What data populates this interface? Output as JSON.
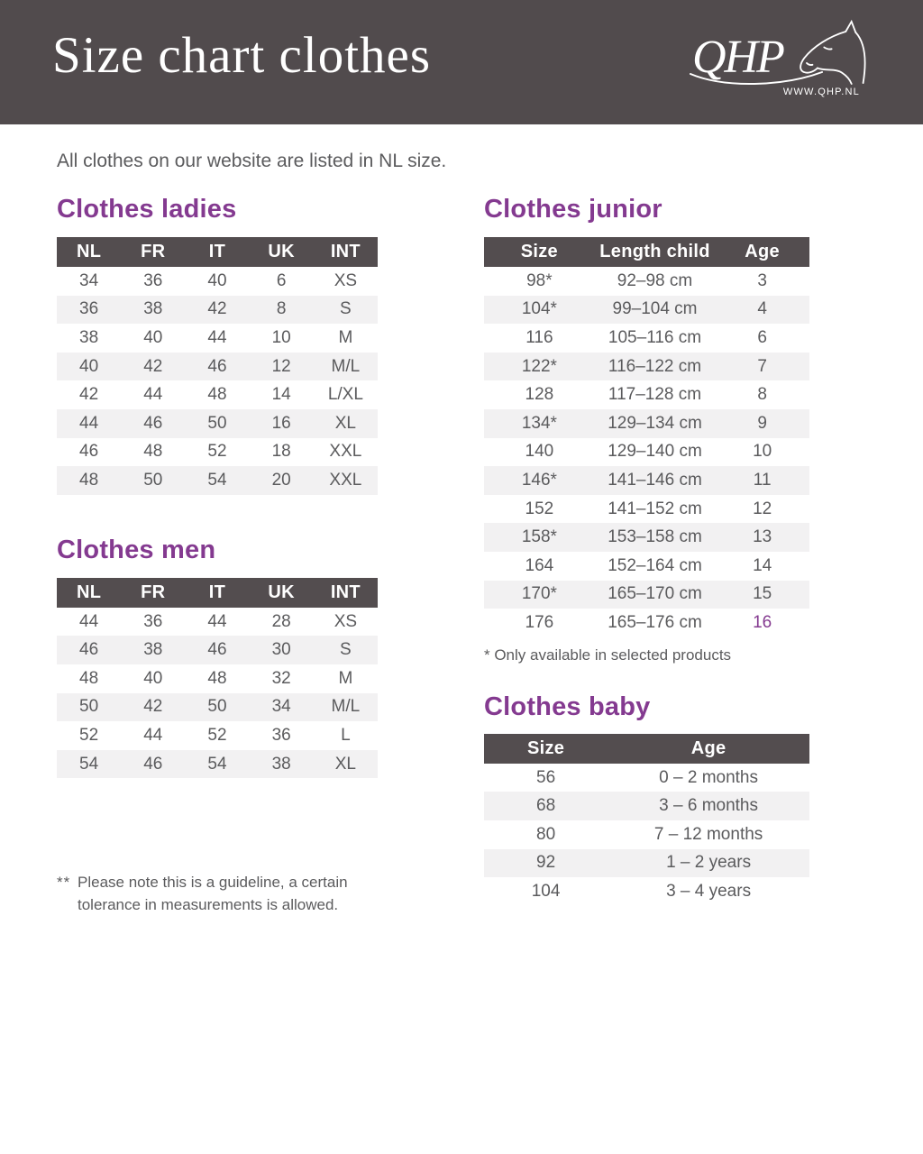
{
  "header": {
    "title": "Size chart clothes",
    "logo_text": "QHP",
    "logo_url": "WWW.QHP.NL"
  },
  "intro": "All clothes on our website are listed in NL size.",
  "colors": {
    "header_bg": "#514b4d",
    "table_header_bg": "#534d4f",
    "accent_purple": "#843a90",
    "body_text": "#5b5b5d",
    "row_stripe": "#f2f1f2"
  },
  "tables": {
    "ladies": {
      "title": "Clothes ladies",
      "columns": [
        "NL",
        "FR",
        "IT",
        "UK",
        "INT"
      ],
      "rows": [
        [
          "34",
          "36",
          "40",
          "6",
          "XS"
        ],
        [
          "36",
          "38",
          "42",
          "8",
          "S"
        ],
        [
          "38",
          "40",
          "44",
          "10",
          "M"
        ],
        [
          "40",
          "42",
          "46",
          "12",
          "M/L"
        ],
        [
          "42",
          "44",
          "48",
          "14",
          "L/XL"
        ],
        [
          "44",
          "46",
          "50",
          "16",
          "XL"
        ],
        [
          "46",
          "48",
          "52",
          "18",
          "XXL"
        ],
        [
          "48",
          "50",
          "54",
          "20",
          "XXL"
        ]
      ]
    },
    "men": {
      "title": "Clothes men",
      "columns": [
        "NL",
        "FR",
        "IT",
        "UK",
        "INT"
      ],
      "rows": [
        [
          "44",
          "36",
          "44",
          "28",
          "XS"
        ],
        [
          "46",
          "38",
          "46",
          "30",
          "S"
        ],
        [
          "48",
          "40",
          "48",
          "32",
          "M"
        ],
        [
          "50",
          "42",
          "50",
          "34",
          "M/L"
        ],
        [
          "52",
          "44",
          "52",
          "36",
          "L"
        ],
        [
          "54",
          "46",
          "54",
          "38",
          "XL"
        ]
      ]
    },
    "junior": {
      "title": "Clothes junior",
      "columns": [
        "Size",
        "Length child",
        "Age"
      ],
      "rows": [
        [
          "98*",
          "92–98 cm",
          "3"
        ],
        [
          "104*",
          "99–104 cm",
          "4"
        ],
        [
          "116",
          "105–116 cm",
          "6"
        ],
        [
          "122*",
          "116–122 cm",
          "7"
        ],
        [
          "128",
          "117–128 cm",
          "8"
        ],
        [
          "134*",
          "129–134 cm",
          "9"
        ],
        [
          "140",
          "129–140 cm",
          "10"
        ],
        [
          "146*",
          "141–146 cm",
          "11"
        ],
        [
          "152",
          "141–152 cm",
          "12"
        ],
        [
          "158*",
          "153–158 cm",
          "13"
        ],
        [
          "164",
          "152–164 cm",
          "14"
        ],
        [
          "170*",
          "165–170 cm",
          "15"
        ],
        [
          "176",
          "165–176 cm",
          "16"
        ]
      ],
      "accent_cells": [
        [
          12,
          2
        ]
      ],
      "footnote": "* Only available in selected products"
    },
    "baby": {
      "title": "Clothes baby",
      "columns": [
        "Size",
        "Age"
      ],
      "rows": [
        [
          "56",
          "0 – 2 months"
        ],
        [
          "68",
          "3 – 6 months"
        ],
        [
          "80",
          "7 – 12 months"
        ],
        [
          "92",
          "1 – 2 years"
        ],
        [
          "104",
          "3 – 4 years"
        ]
      ]
    }
  },
  "note": {
    "marker": "**",
    "line1": "Please note this is a guideline, a certain",
    "line2": "tolerance in measurements is allowed."
  }
}
